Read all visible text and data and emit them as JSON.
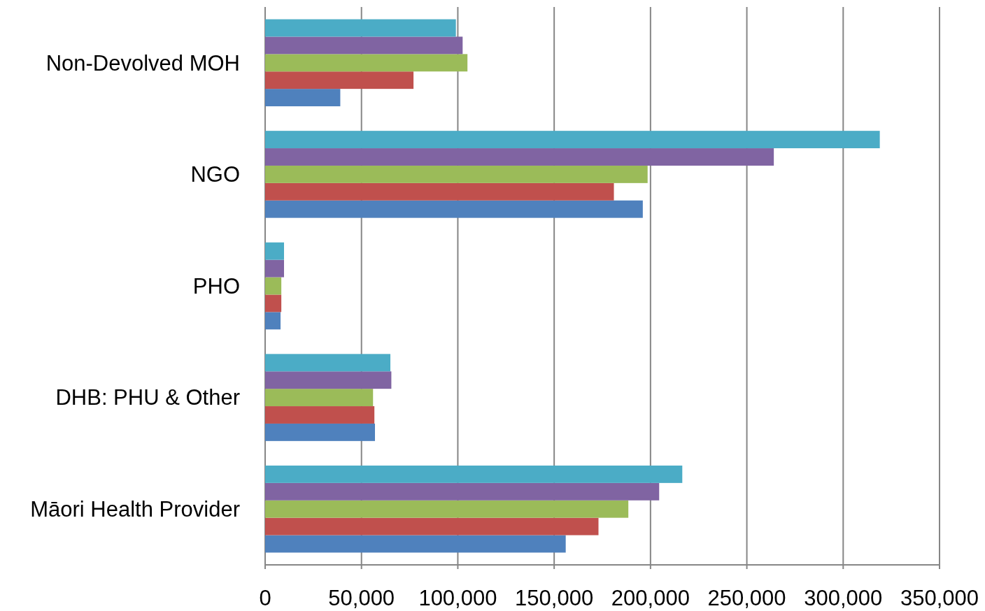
{
  "chart_data": {
    "type": "bar",
    "orientation": "horizontal",
    "categories": [
      "Non-Devolved MOH",
      "NGO",
      "PHO",
      "DHB: PHU & Other",
      "Māori Health Provider"
    ],
    "series": [
      {
        "color": "#4f81bd",
        "values": [
          39000,
          196000,
          8000,
          57000,
          156000
        ]
      },
      {
        "color": "#c0504d",
        "values": [
          77000,
          181000,
          8400,
          56700,
          173000
        ]
      },
      {
        "color": "#9bbb59",
        "values": [
          105000,
          198500,
          8400,
          56000,
          188500
        ]
      },
      {
        "color": "#8064a2",
        "values": [
          102500,
          264000,
          9800,
          65500,
          204500
        ]
      },
      {
        "color": "#4bacc6",
        "values": [
          99000,
          319000,
          9800,
          65000,
          216500
        ]
      }
    ],
    "xlim": [
      0,
      350000
    ],
    "xticks": [
      0,
      {
        "value": 50000,
        "label": "50,000"
      },
      {
        "value": 100000,
        "label": "100,000"
      },
      {
        "value": 150000,
        "label": "150,000"
      },
      {
        "value": 200000,
        "label": "200,000"
      },
      {
        "value": 250000,
        "label": "250,000"
      },
      {
        "value": 300000,
        "label": "300,000"
      },
      {
        "value": 350000,
        "label": "350,000"
      }
    ],
    "grid": "x"
  }
}
